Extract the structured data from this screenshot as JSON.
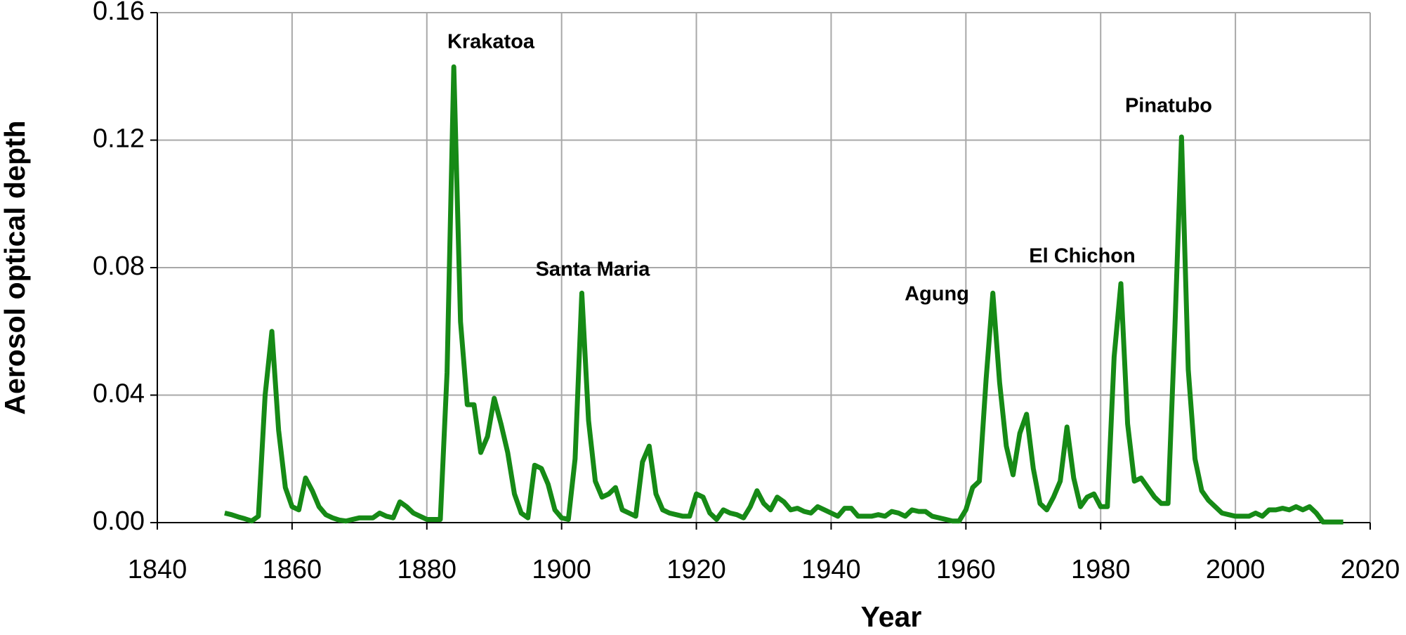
{
  "chart_data": {
    "type": "line",
    "x_label": "Year",
    "y_label": "Aerosol optical depth",
    "x": [
      1850,
      1851,
      1852,
      1853,
      1854,
      1855,
      1856,
      1857,
      1858,
      1859,
      1860,
      1861,
      1862,
      1863,
      1864,
      1865,
      1866,
      1867,
      1868,
      1869,
      1870,
      1871,
      1872,
      1873,
      1874,
      1875,
      1876,
      1877,
      1878,
      1879,
      1880,
      1881,
      1882,
      1883,
      1884,
      1885,
      1886,
      1887,
      1888,
      1889,
      1890,
      1891,
      1892,
      1893,
      1894,
      1895,
      1896,
      1897,
      1898,
      1899,
      1900,
      1901,
      1902,
      1903,
      1904,
      1905,
      1906,
      1907,
      1908,
      1909,
      1910,
      1911,
      1912,
      1913,
      1914,
      1915,
      1916,
      1917,
      1918,
      1919,
      1920,
      1921,
      1922,
      1923,
      1924,
      1925,
      1926,
      1927,
      1928,
      1929,
      1930,
      1931,
      1932,
      1933,
      1934,
      1935,
      1936,
      1937,
      1938,
      1939,
      1940,
      1941,
      1942,
      1943,
      1944,
      1945,
      1946,
      1947,
      1948,
      1949,
      1950,
      1951,
      1952,
      1953,
      1954,
      1955,
      1956,
      1957,
      1958,
      1959,
      1960,
      1961,
      1962,
      1963,
      1964,
      1965,
      1966,
      1967,
      1968,
      1969,
      1970,
      1971,
      1972,
      1973,
      1974,
      1975,
      1976,
      1977,
      1978,
      1979,
      1980,
      1981,
      1982,
      1983,
      1984,
      1985,
      1986,
      1987,
      1988,
      1989,
      1990,
      1991,
      1992,
      1993,
      1994,
      1995,
      1996,
      1997,
      1998,
      1999,
      2000,
      2001,
      2002,
      2003,
      2004,
      2005,
      2006,
      2007,
      2008,
      2009,
      2010,
      2011,
      2012,
      2013,
      2014,
      2015,
      2016
    ],
    "series": [
      {
        "color": "#168a16",
        "values": [
          0.003,
          0.0025,
          0.0018,
          0.0012,
          0.0005,
          0.002,
          0.04,
          0.06,
          0.029,
          0.011,
          0.005,
          0.004,
          0.014,
          0.01,
          0.005,
          0.0025,
          0.0015,
          0.0008,
          0.0005,
          0.001,
          0.0015,
          0.0015,
          0.0015,
          0.003,
          0.002,
          0.0015,
          0.0065,
          0.005,
          0.003,
          0.002,
          0.001,
          0.001,
          0.001,
          0.047,
          0.143,
          0.063,
          0.037,
          0.037,
          0.022,
          0.027,
          0.039,
          0.031,
          0.022,
          0.009,
          0.003,
          0.0015,
          0.018,
          0.017,
          0.012,
          0.004,
          0.0015,
          0.001,
          0.02,
          0.072,
          0.032,
          0.013,
          0.008,
          0.009,
          0.011,
          0.004,
          0.003,
          0.002,
          0.019,
          0.024,
          0.009,
          0.004,
          0.003,
          0.0025,
          0.002,
          0.002,
          0.009,
          0.008,
          0.003,
          0.001,
          0.004,
          0.003,
          0.0025,
          0.0015,
          0.005,
          0.01,
          0.006,
          0.004,
          0.008,
          0.0065,
          0.004,
          0.0045,
          0.0035,
          0.003,
          0.005,
          0.004,
          0.003,
          0.002,
          0.0045,
          0.0045,
          0.002,
          0.002,
          0.002,
          0.0025,
          0.002,
          0.0035,
          0.003,
          0.002,
          0.004,
          0.0035,
          0.0035,
          0.002,
          0.0015,
          0.001,
          0.0005,
          0.0005,
          0.004,
          0.011,
          0.013,
          0.045,
          0.072,
          0.044,
          0.024,
          0.015,
          0.028,
          0.034,
          0.017,
          0.006,
          0.004,
          0.008,
          0.013,
          0.03,
          0.014,
          0.005,
          0.008,
          0.009,
          0.005,
          0.005,
          0.052,
          0.075,
          0.031,
          0.013,
          0.014,
          0.011,
          0.008,
          0.006,
          0.006,
          0.06,
          0.121,
          0.048,
          0.02,
          0.01,
          0.007,
          0.005,
          0.003,
          0.0025,
          0.002,
          0.002,
          0.002,
          0.003,
          0.002,
          0.004,
          0.004,
          0.0045,
          0.004,
          0.005,
          0.004,
          0.005,
          0.003,
          0.0002,
          0.0002,
          0.0002,
          0.0002
        ]
      }
    ],
    "xlim": [
      1840,
      2020
    ],
    "xticks": [
      1840,
      1860,
      1880,
      1900,
      1920,
      1940,
      1960,
      1980,
      2000,
      2020
    ],
    "ylim": [
      0,
      0.16
    ],
    "yticks": [
      {
        "value": 0,
        "label": "0.00"
      },
      0.04,
      0.08,
      0.12,
      0.16
    ],
    "grid": true,
    "annotations": [
      "Krakatoa",
      "Santa Maria",
      "Agung",
      "El Chichon",
      "Pinatubo"
    ]
  }
}
